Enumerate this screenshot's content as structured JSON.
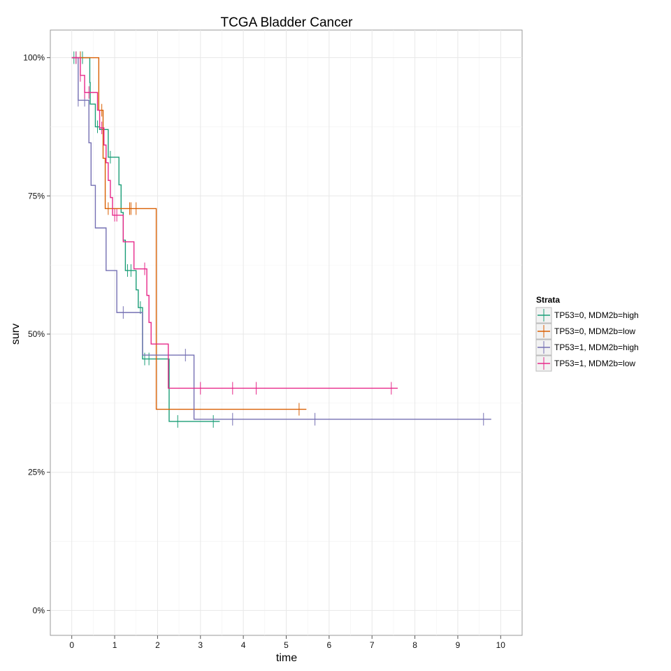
{
  "chart_data": {
    "type": "line",
    "title": "TCGA Bladder Cancer",
    "xlabel": "time",
    "ylabel": "surv",
    "xlim": [
      -0.5,
      10.5
    ],
    "ylim": [
      -0.045,
      1.05
    ],
    "x_ticks": [
      0,
      1,
      2,
      3,
      4,
      5,
      6,
      7,
      8,
      9,
      10
    ],
    "x_tick_labels": [
      "0",
      "1",
      "2",
      "3",
      "4",
      "5",
      "6",
      "7",
      "8",
      "9",
      "10"
    ],
    "y_ticks": [
      0,
      0.25,
      0.5,
      0.75,
      1.0
    ],
    "y_tick_labels": [
      "0%",
      "25%",
      "50%",
      "75%",
      "100%"
    ],
    "grid": true,
    "legend": {
      "title": "Strata",
      "placement": "right"
    },
    "series": [
      {
        "name": "TP53=0, MDM2b=high",
        "color": "#1b9e77",
        "steps": [
          [
            0,
            1.0
          ],
          [
            0.42,
            0.955
          ],
          [
            0.43,
            0.916
          ],
          [
            0.5,
            0.916
          ],
          [
            0.55,
            0.875
          ],
          [
            0.6,
            0.875
          ],
          [
            0.65,
            0.87
          ],
          [
            0.85,
            0.82
          ],
          [
            1.1,
            0.77
          ],
          [
            1.15,
            0.72
          ],
          [
            1.2,
            0.67
          ],
          [
            1.25,
            0.615
          ],
          [
            1.5,
            0.58
          ],
          [
            1.55,
            0.548
          ],
          [
            1.65,
            0.455
          ],
          [
            2.27,
            0.342
          ],
          [
            3.45,
            0.342
          ]
        ],
        "censor_times": [
          0.05,
          0.1,
          0.2,
          0.25,
          0.6,
          0.9,
          1.3,
          1.38,
          1.6,
          1.7,
          1.8,
          2.47,
          3.3
        ]
      },
      {
        "name": "TP53=0, MDM2b=low",
        "color": "#d95f02",
        "steps": [
          [
            0,
            1.0
          ],
          [
            0.62,
            1.0
          ],
          [
            0.63,
            0.905
          ],
          [
            0.73,
            0.818
          ],
          [
            0.78,
            0.727
          ],
          [
            1.95,
            0.727
          ],
          [
            1.97,
            0.364
          ],
          [
            5.47,
            0.364
          ]
        ],
        "censor_times": [
          0.2,
          0.7,
          0.85,
          1.35,
          1.38,
          1.5,
          5.3
        ]
      },
      {
        "name": "TP53=1, MDM2b=high",
        "color": "#7570b3",
        "steps": [
          [
            0,
            1.0
          ],
          [
            0.15,
            0.923
          ],
          [
            0.4,
            0.846
          ],
          [
            0.45,
            0.769
          ],
          [
            0.55,
            0.692
          ],
          [
            0.8,
            0.615
          ],
          [
            1.05,
            0.539
          ],
          [
            1.65,
            0.462
          ],
          [
            2.85,
            0.346
          ],
          [
            9.78,
            0.346
          ]
        ],
        "censor_times": [
          0.15,
          0.3,
          1.2,
          2.65,
          3.75,
          5.67,
          9.6
        ]
      },
      {
        "name": "TP53=1, MDM2b=low",
        "color": "#e7298a",
        "steps": [
          [
            0,
            1.0
          ],
          [
            0.2,
            0.968
          ],
          [
            0.3,
            0.937
          ],
          [
            0.6,
            0.905
          ],
          [
            0.65,
            0.873
          ],
          [
            0.75,
            0.842
          ],
          [
            0.8,
            0.81
          ],
          [
            0.85,
            0.778
          ],
          [
            0.9,
            0.747
          ],
          [
            0.95,
            0.715
          ],
          [
            1.2,
            0.667
          ],
          [
            1.45,
            0.618
          ],
          [
            1.75,
            0.57
          ],
          [
            1.8,
            0.521
          ],
          [
            1.85,
            0.482
          ],
          [
            2.25,
            0.402
          ],
          [
            7.6,
            0.402
          ]
        ],
        "censor_times": [
          0.1,
          0.2,
          0.3,
          0.4,
          0.7,
          1.0,
          1.05,
          1.7,
          3.0,
          3.75,
          4.3,
          7.45
        ]
      }
    ]
  }
}
